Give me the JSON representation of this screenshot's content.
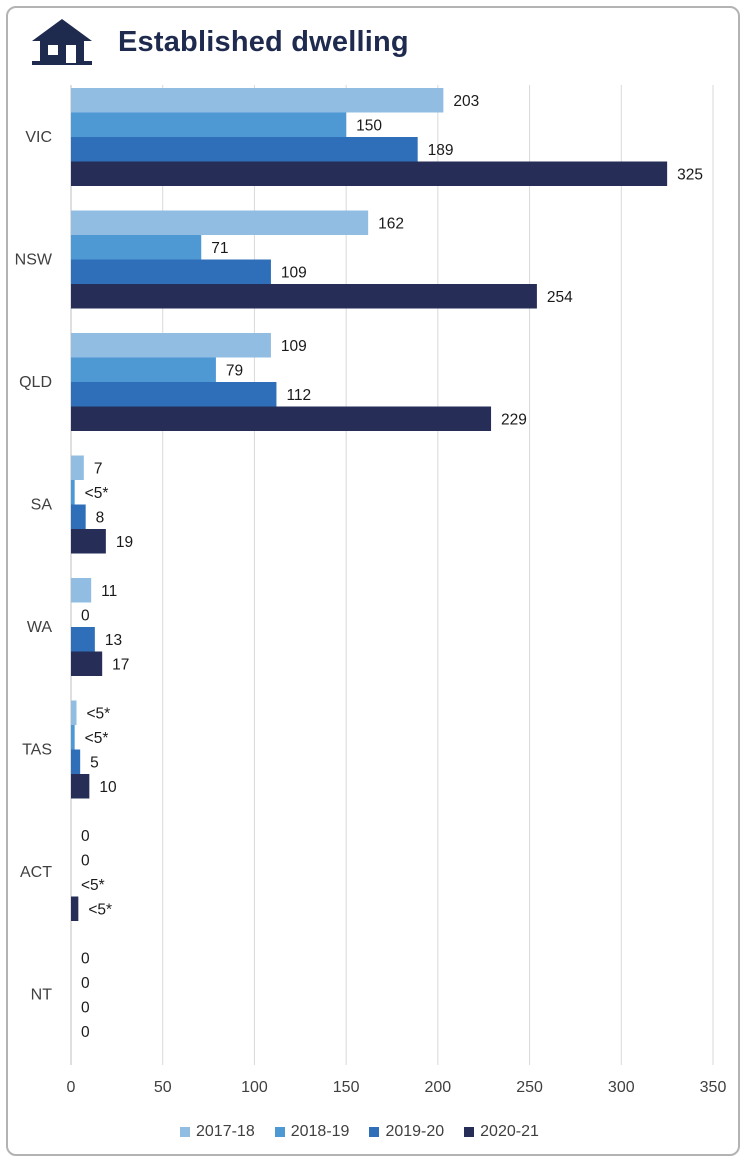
{
  "title": "Established dwelling",
  "icon": "house-icon",
  "chart_data": {
    "type": "bar",
    "orientation": "horizontal",
    "title": "Established dwelling",
    "categories": [
      "VIC",
      "NSW",
      "QLD",
      "SA",
      "WA",
      "TAS",
      "ACT",
      "NT"
    ],
    "series": [
      {
        "name": "2017-18",
        "color": "#92bde3",
        "values": [
          203,
          162,
          109,
          7,
          11,
          3,
          0,
          0
        ],
        "labels": [
          "203",
          "162",
          "109",
          "7",
          "11",
          "<5*",
          "0",
          "0"
        ]
      },
      {
        "name": "2018-19",
        "color": "#4e98d4",
        "values": [
          150,
          71,
          79,
          2,
          0,
          2,
          0,
          0
        ],
        "labels": [
          "150",
          "71",
          "79",
          "<5*",
          "0",
          "<5*",
          "0",
          "0"
        ]
      },
      {
        "name": "2019-20",
        "color": "#2f6fb9",
        "values": [
          189,
          109,
          112,
          8,
          13,
          5,
          0,
          0
        ],
        "labels": [
          "189",
          "109",
          "112",
          "8",
          "13",
          "5",
          "<5*",
          "0"
        ]
      },
      {
        "name": "2020-21",
        "color": "#262d57",
        "values": [
          325,
          254,
          229,
          19,
          17,
          10,
          4,
          0
        ],
        "labels": [
          "325",
          "254",
          "229",
          "19",
          "17",
          "10",
          "<5*",
          "0"
        ]
      }
    ],
    "xlim": [
      0,
      350
    ],
    "xticks": [
      0,
      50,
      100,
      150,
      200,
      250,
      300,
      350
    ],
    "grid": true,
    "legend": "bottom"
  }
}
